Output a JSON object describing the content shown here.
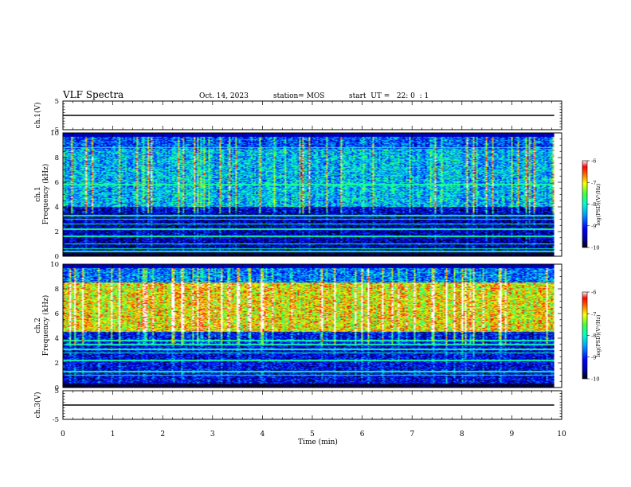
{
  "header": {
    "title": "VLF Spectra",
    "date": "Oct. 14, 2023",
    "station": "station= MOS",
    "start": "start  UT =   22: 0  : 1"
  },
  "chart_data": [
    {
      "type": "line",
      "panel": "ch1-waveform",
      "ylabel": "ch.1(V)",
      "ylim": [
        -5,
        5
      ],
      "yticks": [
        "5",
        "-5"
      ],
      "xlim": [
        0,
        10
      ],
      "series": [
        {
          "x": [
            0,
            9.85
          ],
          "y": [
            0,
            0
          ]
        }
      ],
      "color": "#000000"
    },
    {
      "type": "heatmap",
      "panel": "ch1-spectrogram",
      "ylabel": "ch.1\nFrequency (kHz)",
      "ylim": [
        0,
        10
      ],
      "yticks": [
        "0",
        "2",
        "4",
        "6",
        "8",
        "10"
      ],
      "xlim": [
        0,
        10
      ],
      "data_extent_min": 9.85,
      "colorbar": {
        "label": "log(PSD)(V²/Hz)",
        "range": [
          -10,
          -6
        ],
        "ticks": [
          "-6",
          "-7",
          "-8",
          "-9",
          "-10"
        ]
      },
      "bands": [
        {
          "f_from": 8.7,
          "f_to": 10.0,
          "level": -9.0,
          "note": "upper band with vertical emissions"
        },
        {
          "f_from": 4.0,
          "f_to": 8.7,
          "level": -8.5,
          "note": "impulsive sferic bursts"
        },
        {
          "f_from": 0.0,
          "f_to": 4.0,
          "level": -9.5,
          "note": "noise with horizontal VLF lines"
        }
      ],
      "horizontal_lines_kHz": [
        0.4,
        0.6,
        1.0,
        1.6,
        2.2,
        2.6,
        3.0,
        3.3,
        5.8,
        8.8
      ]
    },
    {
      "type": "heatmap",
      "panel": "ch2-spectrogram",
      "ylabel": "ch.2\nFrequency (kHz)",
      "ylim": [
        0,
        10
      ],
      "yticks": [
        "0",
        "2",
        "4",
        "6",
        "8",
        "10"
      ],
      "xlim": [
        0,
        10
      ],
      "data_extent_min": 9.85,
      "colorbar": {
        "label": "log(PSD)(V²/Hz)",
        "range": [
          -10,
          -6
        ],
        "ticks": [
          "-6",
          "-7",
          "-8",
          "-9",
          "-10"
        ]
      },
      "bands": [
        {
          "f_from": 8.5,
          "f_to": 10.0,
          "level": -8.8,
          "note": "upper emissions"
        },
        {
          "f_from": 4.5,
          "f_to": 8.5,
          "level": -7.2,
          "note": "strong chorus-like activity"
        },
        {
          "f_from": 0.0,
          "f_to": 4.5,
          "level": -9.3,
          "note": "noise with horizontal VLF lines"
        }
      ],
      "horizontal_lines_kHz": [
        1.0,
        1.3,
        2.2,
        2.8,
        3.1,
        3.5,
        3.8
      ]
    },
    {
      "type": "line",
      "panel": "ch3-waveform",
      "ylabel": "ch.3(V)",
      "ylim": [
        -5,
        5
      ],
      "yticks": [
        "5",
        "-5"
      ],
      "xlim": [
        0,
        10
      ],
      "series": [
        {
          "x": [
            0,
            9.85
          ],
          "y": [
            0,
            0
          ]
        }
      ],
      "color": "#000000"
    }
  ],
  "x_axis": {
    "label": "Time (min)",
    "ticks": [
      "0",
      "1",
      "2",
      "3",
      "4",
      "5",
      "6",
      "7",
      "8",
      "9",
      "10"
    ]
  }
}
